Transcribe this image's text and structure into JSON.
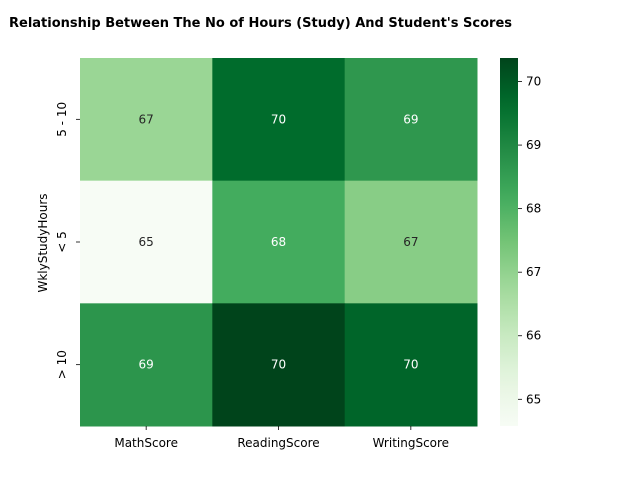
{
  "chart_data": {
    "type": "heatmap",
    "title": "Relationship Between The No of Hours (Study) And Student's Scores",
    "xlabel": "",
    "ylabel": "WklyStudyHours",
    "x_categories": [
      "MathScore",
      "ReadingScore",
      "WritingScore"
    ],
    "y_categories": [
      "5 - 10",
      "< 5",
      "> 10"
    ],
    "values": [
      [
        66.87,
        69.66,
        68.64
      ],
      [
        64.58,
        68.17,
        67.16
      ],
      [
        68.7,
        70.37,
        69.78
      ]
    ],
    "annotations": [
      [
        "67",
        "70",
        "69"
      ],
      [
        "65",
        "68",
        "67"
      ],
      [
        "69",
        "70",
        "70"
      ]
    ],
    "colorbar": {
      "range": [
        64.58,
        70.37
      ],
      "ticks": [
        "65",
        "66",
        "67",
        "68",
        "69",
        "70"
      ],
      "colormap": "Greens"
    },
    "grid": false
  }
}
